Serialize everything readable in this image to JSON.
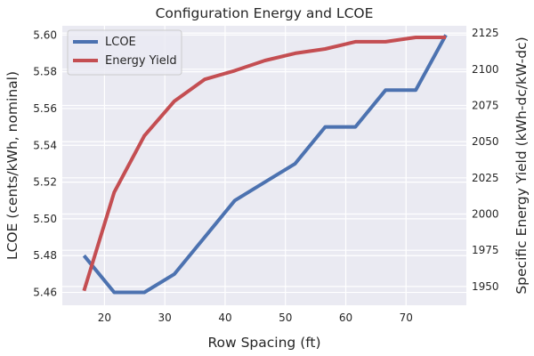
{
  "chart_data": {
    "type": "line",
    "title": "Configuration Energy and LCOE",
    "xlabel": "Row Spacing (ft)",
    "ylabel_left": "LCOE (cents/kWh, nominal)",
    "ylabel_right": "Specific Energy Yield (kWh-dc/kW-dc)",
    "xlim": [
      13,
      80
    ],
    "ylim_left": [
      5.453,
      5.605
    ],
    "ylim_right": [
      1937,
      2130
    ],
    "x_ticks": [
      20,
      30,
      40,
      50,
      60,
      70
    ],
    "y_left_ticks": [
      5.46,
      5.48,
      5.5,
      5.52,
      5.54,
      5.56,
      5.58,
      5.6
    ],
    "y_right_ticks": [
      1950,
      1975,
      2000,
      2025,
      2050,
      2075,
      2100,
      2125
    ],
    "x_tick_labels": [
      "20",
      "30",
      "40",
      "50",
      "60",
      "70"
    ],
    "y_left_tick_labels": [
      "5.46",
      "5.48",
      "5.50",
      "5.52",
      "5.54",
      "5.56",
      "5.58",
      "5.60"
    ],
    "y_right_tick_labels": [
      "1950",
      "1975",
      "2000",
      "2025",
      "2050",
      "2075",
      "2100",
      "2125"
    ],
    "x": [
      16.6,
      21.6,
      26.6,
      31.6,
      36.6,
      41.6,
      46.6,
      51.6,
      56.6,
      61.6,
      66.6,
      71.6,
      76.6
    ],
    "series": [
      {
        "name": "LCOE",
        "axis": "left",
        "color": "#4c72b0",
        "values": [
          5.48,
          5.46,
          5.46,
          5.47,
          5.49,
          5.51,
          5.52,
          5.53,
          5.55,
          5.55,
          5.57,
          5.57,
          5.6
        ]
      },
      {
        "name": "Energy Yield",
        "axis": "right",
        "color": "#c44e52",
        "values": [
          1947,
          2015,
          2054,
          2078,
          2093,
          2099,
          2106,
          2111,
          2114,
          2119,
          2119,
          2122,
          2122
        ]
      }
    ],
    "legend_position": "top-left",
    "grid": true,
    "background": "#eaeaf2",
    "grid_color": "#ffffff"
  }
}
